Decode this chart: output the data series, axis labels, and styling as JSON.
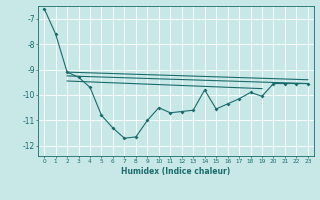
{
  "xlabel": "Humidex (Indice chaleur)",
  "background_color": "#c8e8e8",
  "grid_color": "#ffffff",
  "line_color": "#1a6b6b",
  "xlim": [
    -0.5,
    23.5
  ],
  "ylim": [
    -12.4,
    -6.5
  ],
  "yticks": [
    -7,
    -8,
    -9,
    -10,
    -11,
    -12
  ],
  "xticks": [
    0,
    1,
    2,
    3,
    4,
    5,
    6,
    7,
    8,
    9,
    10,
    11,
    12,
    13,
    14,
    15,
    16,
    17,
    18,
    19,
    20,
    21,
    22,
    23
  ],
  "line1_x": [
    0,
    1,
    2,
    3,
    4,
    5,
    6,
    7,
    8,
    9,
    10,
    11,
    12,
    13,
    14,
    15,
    16,
    17,
    18,
    19,
    20,
    21,
    22,
    23
  ],
  "line1_y": [
    -6.6,
    -7.6,
    -9.1,
    -9.3,
    -9.7,
    -10.8,
    -11.3,
    -11.7,
    -11.65,
    -11.0,
    -10.5,
    -10.7,
    -10.65,
    -10.6,
    -9.8,
    -10.55,
    -10.35,
    -10.15,
    -9.9,
    -10.05,
    -9.55,
    -9.55,
    -9.55,
    -9.55
  ],
  "line2_x": [
    2,
    23
  ],
  "line2_y": [
    -9.1,
    -9.4
  ],
  "line3_x": [
    2,
    23
  ],
  "line3_y": [
    -9.25,
    -9.55
  ],
  "line4_x": [
    2,
    19
  ],
  "line4_y": [
    -9.45,
    -9.75
  ]
}
